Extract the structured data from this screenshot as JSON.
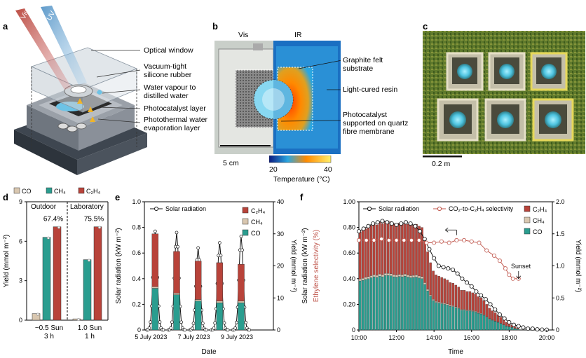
{
  "panels": {
    "a": "a",
    "b": "b",
    "c": "c",
    "d": "d",
    "e": "e",
    "f": "f"
  },
  "colors": {
    "co": "#2a9d8f",
    "ch4": "#d9c7b0",
    "c2h4": "#b8433a",
    "selectivity": "#c0574d",
    "black": "#1a1a1a"
  },
  "panel_a": {
    "beam_left": "Vis + IR",
    "beam_right": "UV + Vis",
    "labels": [
      "Optical window",
      "Vacuum-tight silicone rubber",
      "Water vapour to distilled water",
      "Photocatalyst layer",
      "Photothermal water evaporation layer"
    ],
    "label_lines": [
      [
        "Optical window"
      ],
      [
        "Vacuum-tight",
        "silicone rubber"
      ],
      [
        "Water vapour to",
        "distilled water"
      ],
      [
        "Photocatalyst layer"
      ],
      [
        "Photothermal water",
        "evaporation layer"
      ]
    ]
  },
  "panel_b": {
    "vis_label": "Vis",
    "ir_label": "IR",
    "scale_label": "5 cm",
    "colorbar_min": "20",
    "colorbar_max": "40",
    "colorbar_title": "Temperature (°C)",
    "callout_lines": [
      [
        "Graphite felt",
        "substrate"
      ],
      [
        "Light-cured resin"
      ],
      [
        "Photocatalyst",
        "supported on quartz",
        "fibre membrane"
      ]
    ]
  },
  "panel_c": {
    "scale_label": "0.2 m"
  },
  "chart_data": [
    {
      "id": "d",
      "type": "bar",
      "legend": [
        "CO",
        "CH₄",
        "C₂H₄"
      ],
      "ylabel": "Yield (mmol m⁻²)",
      "ylim": [
        0,
        9
      ],
      "yticks": [
        "0",
        "3",
        "6",
        "9"
      ],
      "groups": [
        {
          "name": "Outdoor",
          "xlabel": [
            "−0.5 Sun",
            "3 h"
          ],
          "selectivity": "67.4%",
          "values": {
            "CO": 0.5,
            "CH4": 6.3,
            "C2H4": 7.1
          }
        },
        {
          "name": "Laboratory",
          "xlabel": [
            "1.0 Sun",
            "1 h"
          ],
          "selectivity": "75.5%",
          "values": {
            "CO": 0.1,
            "CH4": 4.6,
            "C2H4": 7.1
          }
        }
      ]
    },
    {
      "id": "e",
      "type": "bar+line",
      "xlabel": "Date",
      "xticks": [
        "5 July 2023",
        "7 July 2023",
        "9 July 2023"
      ],
      "ylabel_left": "Solar radiation (kW m⁻²)",
      "ylim_left": [
        0,
        1.0
      ],
      "yticks_left": [
        "0",
        "0.2",
        "0.4",
        "0.6",
        "0.8",
        "1.0"
      ],
      "ylabel_right": "Yield (mmol m⁻²)",
      "ylim_right": [
        0,
        40
      ],
      "yticks_right": [
        "0",
        "10",
        "20",
        "30",
        "40"
      ],
      "legend": [
        "Solar radiation",
        "C₂H₄",
        "CH₄",
        "CO"
      ],
      "days": [
        {
          "co": 13,
          "ch4": 0.5,
          "c2h4": 16.5
        },
        {
          "co": 11,
          "ch4": 0.5,
          "c2h4": 13
        },
        {
          "co": 9,
          "ch4": 0.5,
          "c2h4": 12
        },
        {
          "co": 8.5,
          "ch4": 0.5,
          "c2h4": 12
        },
        {
          "co": 8.5,
          "ch4": 0.5,
          "c2h4": 11.5
        },
        {
          "co": 0,
          "ch4": 0,
          "c2h4": 0
        }
      ],
      "radiation_peaks": [
        0.77,
        0.76,
        0.64,
        0.68,
        0.73,
        0.0
      ]
    },
    {
      "id": "f",
      "type": "bar+line",
      "xlabel": "Time",
      "xticks": [
        "10:00",
        "12:00",
        "14:00",
        "16:00",
        "18:00",
        "20:00"
      ],
      "ylabel_left_a": "Solar radiation (kW m⁻²)",
      "ylabel_left_b": "Ethylene selectivity (%)",
      "ylim_left": [
        0,
        1.0
      ],
      "yticks_left": [
        "0",
        "0.20",
        "0.40",
        "0.60",
        "0.80",
        "1.00"
      ],
      "ylabel_right": "Yield (mmol m⁻²)",
      "ylim_right": [
        0,
        2.0
      ],
      "yticks_right": [
        "0",
        "0.5",
        "1.0",
        "1.5",
        "2.0"
      ],
      "legend": [
        "Solar radiation",
        "CO₂-to-C₂H₄ selectivity",
        "C₂H₄",
        "CH₄",
        "CO"
      ],
      "annotation": "Sunset",
      "bar_times": [
        10.0,
        10.15,
        10.3,
        10.45,
        10.6,
        10.75,
        10.9,
        11.05,
        11.2,
        11.35,
        11.5,
        11.65,
        11.8,
        11.95,
        12.1,
        12.25,
        12.4,
        12.55,
        12.7,
        12.85,
        13.0,
        13.15,
        13.3,
        13.45,
        13.6,
        13.75,
        13.9,
        14.05,
        14.2,
        14.35,
        14.5,
        14.65,
        14.8,
        14.95,
        15.1,
        15.25,
        15.4,
        15.55,
        15.7,
        15.85,
        16.0,
        16.15,
        16.3,
        16.45,
        16.6,
        16.75,
        16.9,
        17.05,
        17.2,
        17.35,
        17.5,
        17.65,
        17.8,
        17.95,
        18.1,
        18.25,
        18.4
      ],
      "bar_totals": [
        1.53,
        1.55,
        1.58,
        1.6,
        1.63,
        1.66,
        1.64,
        1.68,
        1.66,
        1.7,
        1.7,
        1.69,
        1.66,
        1.65,
        1.67,
        1.66,
        1.68,
        1.65,
        1.63,
        1.64,
        1.65,
        1.62,
        1.6,
        1.42,
        1.22,
        1.05,
        0.92,
        0.86,
        0.84,
        0.82,
        0.8,
        0.78,
        0.74,
        0.73,
        0.7,
        0.67,
        0.62,
        0.62,
        0.6,
        0.6,
        0.58,
        0.56,
        0.52,
        0.5,
        0.46,
        0.4,
        0.34,
        0.3,
        0.27,
        0.24,
        0.2,
        0.16,
        0.12,
        0.1,
        0.08,
        0.05,
        0.03
      ],
      "co_fraction": 0.5,
      "ch4_fraction": 0.02,
      "radiation_times": [
        10.0,
        10.25,
        10.5,
        10.75,
        11.0,
        11.25,
        11.5,
        11.75,
        12.0,
        12.25,
        12.5,
        12.75,
        13.0,
        13.25,
        13.5,
        13.75,
        14.0,
        14.25,
        14.5,
        14.75,
        15.0,
        15.25,
        15.5,
        15.75,
        16.0,
        16.25,
        16.5,
        16.75,
        17.0,
        17.25,
        17.5,
        17.75,
        18.0,
        18.25,
        18.5,
        18.75,
        19.0,
        19.25,
        19.5,
        19.75,
        20.0
      ],
      "radiation": [
        0.77,
        0.79,
        0.81,
        0.83,
        0.84,
        0.85,
        0.84,
        0.83,
        0.82,
        0.83,
        0.84,
        0.83,
        0.81,
        0.77,
        0.71,
        0.63,
        0.56,
        0.5,
        0.49,
        0.48,
        0.47,
        0.44,
        0.4,
        0.37,
        0.34,
        0.3,
        0.27,
        0.24,
        0.2,
        0.16,
        0.12,
        0.09,
        0.06,
        0.04,
        0.03,
        0.02,
        0.01,
        0.01,
        0.005,
        0.003,
        0.002
      ],
      "selectivity_times": [
        10.0,
        10.4,
        10.8,
        11.2,
        11.6,
        12.0,
        12.4,
        12.8,
        13.2,
        13.6,
        14.0,
        14.4,
        14.8,
        15.2,
        15.6,
        16.0,
        16.4,
        16.8,
        17.2,
        17.5,
        17.8,
        18.0,
        18.2,
        18.5
      ],
      "selectivity": [
        0.7,
        0.7,
        0.7,
        0.71,
        0.7,
        0.7,
        0.7,
        0.7,
        0.7,
        0.68,
        0.68,
        0.69,
        0.68,
        0.7,
        0.7,
        0.69,
        0.68,
        0.62,
        0.58,
        0.54,
        0.48,
        0.43,
        0.4,
        0.4
      ]
    }
  ]
}
